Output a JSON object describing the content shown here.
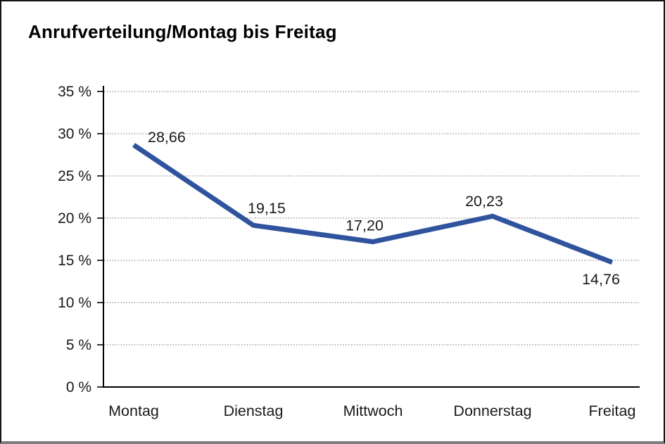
{
  "page": {
    "background": "#ffffff",
    "frame_border_color": "#141414",
    "frame_bottom_edge_color": "#7d7d7d"
  },
  "chart_data": {
    "type": "line",
    "title": "Anrufverteilung/Montag bis Freitag",
    "categories": [
      "Montag",
      "Dienstag",
      "Mittwoch",
      "Donnerstag",
      "Freitag"
    ],
    "values": [
      28.66,
      19.15,
      17.2,
      20.23,
      14.76
    ],
    "value_labels": [
      "28,66",
      "19,15",
      "17,20",
      "20,23",
      "14,76"
    ],
    "xlabel": "",
    "ylabel": "",
    "ylim": [
      0,
      35
    ],
    "y_tick_step": 5,
    "y_tick_labels": [
      "0 %",
      "5 %",
      "10 %",
      "15 %",
      "20 %",
      "25 %",
      "30 %",
      "35 %"
    ],
    "grid": "horizontal-dotted",
    "legend": "none",
    "colors": {
      "line": "#30539e",
      "text": "#1a1a1a",
      "grid": "#8a8a8a",
      "axis": "#000000"
    }
  }
}
